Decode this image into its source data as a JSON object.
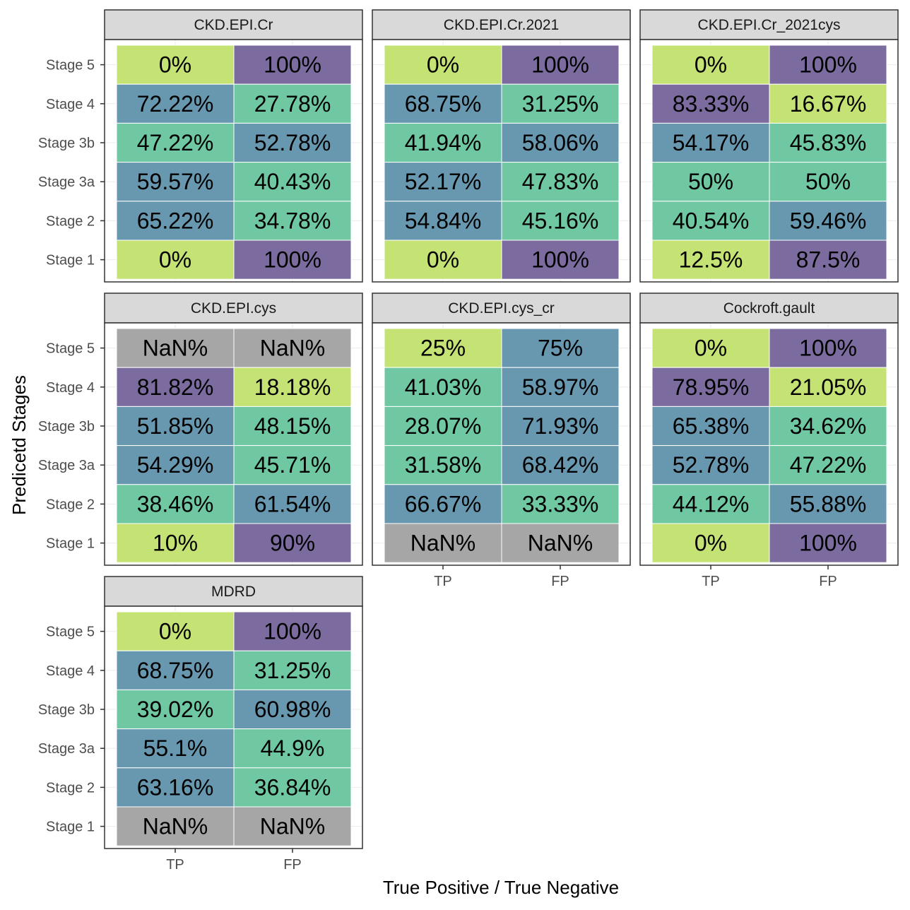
{
  "chart_data": {
    "type": "heatmap",
    "xlabel": "True Positive / True Negative",
    "ylabel": "Predicetd Stages",
    "categories_x": [
      "TP",
      "FP"
    ],
    "categories_y": [
      "Stage 5",
      "Stage 4",
      "Stage 3b",
      "Stage 3a",
      "Stage 2",
      "Stage 1"
    ],
    "fill_levels": {
      "yellow": "#c5e374",
      "green": "#6fc8a2",
      "blue": "#6898b0",
      "purple": "#7c6b9f",
      "nan": "#a6a6a6"
    },
    "panels": [
      {
        "name": "CKD.EPI.Cr",
        "rows": [
          {
            "stage": "Stage 5",
            "cells": [
              {
                "label": "0%",
                "fill": "yellow"
              },
              {
                "label": "100%",
                "fill": "purple"
              }
            ]
          },
          {
            "stage": "Stage 4",
            "cells": [
              {
                "label": "72.22%",
                "fill": "blue"
              },
              {
                "label": "27.78%",
                "fill": "green"
              }
            ]
          },
          {
            "stage": "Stage 3b",
            "cells": [
              {
                "label": "47.22%",
                "fill": "green"
              },
              {
                "label": "52.78%",
                "fill": "blue"
              }
            ]
          },
          {
            "stage": "Stage 3a",
            "cells": [
              {
                "label": "59.57%",
                "fill": "blue"
              },
              {
                "label": "40.43%",
                "fill": "green"
              }
            ]
          },
          {
            "stage": "Stage 2",
            "cells": [
              {
                "label": "65.22%",
                "fill": "blue"
              },
              {
                "label": "34.78%",
                "fill": "green"
              }
            ]
          },
          {
            "stage": "Stage 1",
            "cells": [
              {
                "label": "0%",
                "fill": "yellow"
              },
              {
                "label": "100%",
                "fill": "purple"
              }
            ]
          }
        ]
      },
      {
        "name": "CKD.EPI.Cr.2021",
        "rows": [
          {
            "stage": "Stage 5",
            "cells": [
              {
                "label": "0%",
                "fill": "yellow"
              },
              {
                "label": "100%",
                "fill": "purple"
              }
            ]
          },
          {
            "stage": "Stage 4",
            "cells": [
              {
                "label": "68.75%",
                "fill": "blue"
              },
              {
                "label": "31.25%",
                "fill": "green"
              }
            ]
          },
          {
            "stage": "Stage 3b",
            "cells": [
              {
                "label": "41.94%",
                "fill": "green"
              },
              {
                "label": "58.06%",
                "fill": "blue"
              }
            ]
          },
          {
            "stage": "Stage 3a",
            "cells": [
              {
                "label": "52.17%",
                "fill": "blue"
              },
              {
                "label": "47.83%",
                "fill": "green"
              }
            ]
          },
          {
            "stage": "Stage 2",
            "cells": [
              {
                "label": "54.84%",
                "fill": "blue"
              },
              {
                "label": "45.16%",
                "fill": "green"
              }
            ]
          },
          {
            "stage": "Stage 1",
            "cells": [
              {
                "label": "0%",
                "fill": "yellow"
              },
              {
                "label": "100%",
                "fill": "purple"
              }
            ]
          }
        ]
      },
      {
        "name": "CKD.EPI.Cr_2021cys",
        "rows": [
          {
            "stage": "Stage 5",
            "cells": [
              {
                "label": "0%",
                "fill": "yellow"
              },
              {
                "label": "100%",
                "fill": "purple"
              }
            ]
          },
          {
            "stage": "Stage 4",
            "cells": [
              {
                "label": "83.33%",
                "fill": "purple"
              },
              {
                "label": "16.67%",
                "fill": "yellow"
              }
            ]
          },
          {
            "stage": "Stage 3b",
            "cells": [
              {
                "label": "54.17%",
                "fill": "blue"
              },
              {
                "label": "45.83%",
                "fill": "green"
              }
            ]
          },
          {
            "stage": "Stage 3a",
            "cells": [
              {
                "label": "50%",
                "fill": "green"
              },
              {
                "label": "50%",
                "fill": "green"
              }
            ]
          },
          {
            "stage": "Stage 2",
            "cells": [
              {
                "label": "40.54%",
                "fill": "green"
              },
              {
                "label": "59.46%",
                "fill": "blue"
              }
            ]
          },
          {
            "stage": "Stage 1",
            "cells": [
              {
                "label": "12.5%",
                "fill": "yellow"
              },
              {
                "label": "87.5%",
                "fill": "purple"
              }
            ]
          }
        ]
      },
      {
        "name": "CKD.EPI.cys",
        "rows": [
          {
            "stage": "Stage 5",
            "cells": [
              {
                "label": "NaN%",
                "fill": "nan"
              },
              {
                "label": "NaN%",
                "fill": "nan"
              }
            ]
          },
          {
            "stage": "Stage 4",
            "cells": [
              {
                "label": "81.82%",
                "fill": "purple"
              },
              {
                "label": "18.18%",
                "fill": "yellow"
              }
            ]
          },
          {
            "stage": "Stage 3b",
            "cells": [
              {
                "label": "51.85%",
                "fill": "blue"
              },
              {
                "label": "48.15%",
                "fill": "green"
              }
            ]
          },
          {
            "stage": "Stage 3a",
            "cells": [
              {
                "label": "54.29%",
                "fill": "blue"
              },
              {
                "label": "45.71%",
                "fill": "green"
              }
            ]
          },
          {
            "stage": "Stage 2",
            "cells": [
              {
                "label": "38.46%",
                "fill": "green"
              },
              {
                "label": "61.54%",
                "fill": "blue"
              }
            ]
          },
          {
            "stage": "Stage 1",
            "cells": [
              {
                "label": "10%",
                "fill": "yellow"
              },
              {
                "label": "90%",
                "fill": "purple"
              }
            ]
          }
        ]
      },
      {
        "name": "CKD.EPI.cys_cr",
        "rows": [
          {
            "stage": "Stage 5",
            "cells": [
              {
                "label": "25%",
                "fill": "yellow"
              },
              {
                "label": "75%",
                "fill": "blue"
              }
            ]
          },
          {
            "stage": "Stage 4",
            "cells": [
              {
                "label": "41.03%",
                "fill": "green"
              },
              {
                "label": "58.97%",
                "fill": "blue"
              }
            ]
          },
          {
            "stage": "Stage 3b",
            "cells": [
              {
                "label": "28.07%",
                "fill": "green"
              },
              {
                "label": "71.93%",
                "fill": "blue"
              }
            ]
          },
          {
            "stage": "Stage 3a",
            "cells": [
              {
                "label": "31.58%",
                "fill": "green"
              },
              {
                "label": "68.42%",
                "fill": "blue"
              }
            ]
          },
          {
            "stage": "Stage 2",
            "cells": [
              {
                "label": "66.67%",
                "fill": "blue"
              },
              {
                "label": "33.33%",
                "fill": "green"
              }
            ]
          },
          {
            "stage": "Stage 1",
            "cells": [
              {
                "label": "NaN%",
                "fill": "nan"
              },
              {
                "label": "NaN%",
                "fill": "nan"
              }
            ]
          }
        ]
      },
      {
        "name": "Cockroft.gault",
        "rows": [
          {
            "stage": "Stage 5",
            "cells": [
              {
                "label": "0%",
                "fill": "yellow"
              },
              {
                "label": "100%",
                "fill": "purple"
              }
            ]
          },
          {
            "stage": "Stage 4",
            "cells": [
              {
                "label": "78.95%",
                "fill": "purple"
              },
              {
                "label": "21.05%",
                "fill": "yellow"
              }
            ]
          },
          {
            "stage": "Stage 3b",
            "cells": [
              {
                "label": "65.38%",
                "fill": "blue"
              },
              {
                "label": "34.62%",
                "fill": "green"
              }
            ]
          },
          {
            "stage": "Stage 3a",
            "cells": [
              {
                "label": "52.78%",
                "fill": "blue"
              },
              {
                "label": "47.22%",
                "fill": "green"
              }
            ]
          },
          {
            "stage": "Stage 2",
            "cells": [
              {
                "label": "44.12%",
                "fill": "green"
              },
              {
                "label": "55.88%",
                "fill": "blue"
              }
            ]
          },
          {
            "stage": "Stage 1",
            "cells": [
              {
                "label": "0%",
                "fill": "yellow"
              },
              {
                "label": "100%",
                "fill": "purple"
              }
            ]
          }
        ]
      },
      {
        "name": "MDRD",
        "rows": [
          {
            "stage": "Stage 5",
            "cells": [
              {
                "label": "0%",
                "fill": "yellow"
              },
              {
                "label": "100%",
                "fill": "purple"
              }
            ]
          },
          {
            "stage": "Stage 4",
            "cells": [
              {
                "label": "68.75%",
                "fill": "blue"
              },
              {
                "label": "31.25%",
                "fill": "green"
              }
            ]
          },
          {
            "stage": "Stage 3b",
            "cells": [
              {
                "label": "39.02%",
                "fill": "green"
              },
              {
                "label": "60.98%",
                "fill": "blue"
              }
            ]
          },
          {
            "stage": "Stage 3a",
            "cells": [
              {
                "label": "55.1%",
                "fill": "blue"
              },
              {
                "label": "44.9%",
                "fill": "green"
              }
            ]
          },
          {
            "stage": "Stage 2",
            "cells": [
              {
                "label": "63.16%",
                "fill": "blue"
              },
              {
                "label": "36.84%",
                "fill": "green"
              }
            ]
          },
          {
            "stage": "Stage 1",
            "cells": [
              {
                "label": "NaN%",
                "fill": "nan"
              },
              {
                "label": "NaN%",
                "fill": "nan"
              }
            ]
          }
        ]
      }
    ]
  }
}
